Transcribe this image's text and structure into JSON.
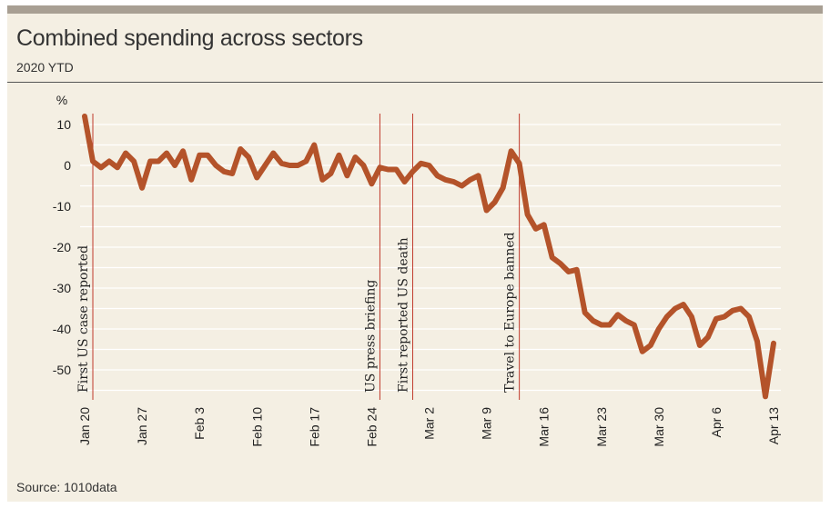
{
  "header": {
    "title": "Combined spending across sectors",
    "subtitle": "2020 YTD"
  },
  "footer": {
    "source": "Source: 1010data"
  },
  "colors": {
    "line": "#b4532a",
    "annotation": "#c0392b",
    "grid": "#ffffff",
    "background": "#f4efe3"
  },
  "chart_data": {
    "type": "line",
    "title": "Combined spending across sectors",
    "subtitle": "2020 YTD",
    "ylabel": "%",
    "xlabel": "",
    "ylim": [
      -57,
      13
    ],
    "yticks": [
      10,
      0,
      -10,
      -20,
      -30,
      -40,
      -50
    ],
    "grid": true,
    "x_tick_labels": [
      "Jan 20",
      "Jan 27",
      "Feb 3",
      "Feb 10",
      "Feb 17",
      "Feb 24",
      "Mar 2",
      "Mar 9",
      "Mar 16",
      "Mar 23",
      "Mar 30",
      "Apr 6",
      "Apr 13"
    ],
    "x_tick_days": [
      0,
      7,
      14,
      21,
      28,
      35,
      42,
      49,
      56,
      63,
      70,
      77,
      84
    ],
    "annotations": [
      {
        "label": "First US case reported",
        "x": 1
      },
      {
        "label": "US press briefing",
        "x": 36
      },
      {
        "label": "First reported US death",
        "x": 40
      },
      {
        "label": "Travel to Europe banned",
        "x": 53
      }
    ],
    "series": [
      {
        "x": [
          0,
          1,
          2,
          3,
          4,
          5,
          6,
          7,
          8,
          9,
          10,
          11,
          12,
          13,
          14,
          15,
          16,
          17,
          18,
          19,
          20,
          21,
          22,
          23,
          24,
          25,
          26,
          27,
          28,
          29,
          30,
          31,
          32,
          33,
          34,
          35,
          36,
          37,
          38,
          39,
          40,
          41,
          42,
          43,
          44,
          45,
          46,
          47,
          48,
          49,
          50,
          51,
          52,
          53,
          54,
          55,
          56,
          57,
          58,
          59,
          60,
          61,
          62,
          63,
          64,
          65,
          66,
          67,
          68,
          69,
          70,
          71,
          72,
          73,
          74,
          75,
          76,
          77,
          78,
          79,
          80,
          81,
          82,
          83,
          84
        ],
        "values": [
          12,
          1,
          -0.5,
          1,
          -0.5,
          3,
          1,
          -5.5,
          1,
          1,
          3,
          0,
          3.5,
          -3.5,
          2.5,
          2.5,
          0,
          -1.5,
          -2,
          4,
          2,
          -3,
          0,
          3,
          0.5,
          0,
          0,
          1,
          5,
          -3.5,
          -2,
          2.5,
          -2.5,
          2,
          0,
          -4.5,
          -0.5,
          -1,
          -1,
          -4,
          -1.5,
          0.5,
          0,
          -2.5,
          -3.5,
          -4,
          -5,
          -3.5,
          -2.5,
          -11,
          -9,
          -5.5,
          3.5,
          0.5,
          -12,
          -15.5,
          -14.5,
          -22.5,
          -24,
          -26,
          -25.5,
          -36,
          -38,
          -39,
          -39,
          -36.5,
          -38,
          -39,
          -45.5,
          -44,
          -40,
          -37,
          -35,
          -34,
          -37,
          -44,
          -42,
          -37.5,
          -37,
          -35.5,
          -35,
          -37,
          -43,
          -56.5,
          -43.5
        ]
      }
    ]
  }
}
